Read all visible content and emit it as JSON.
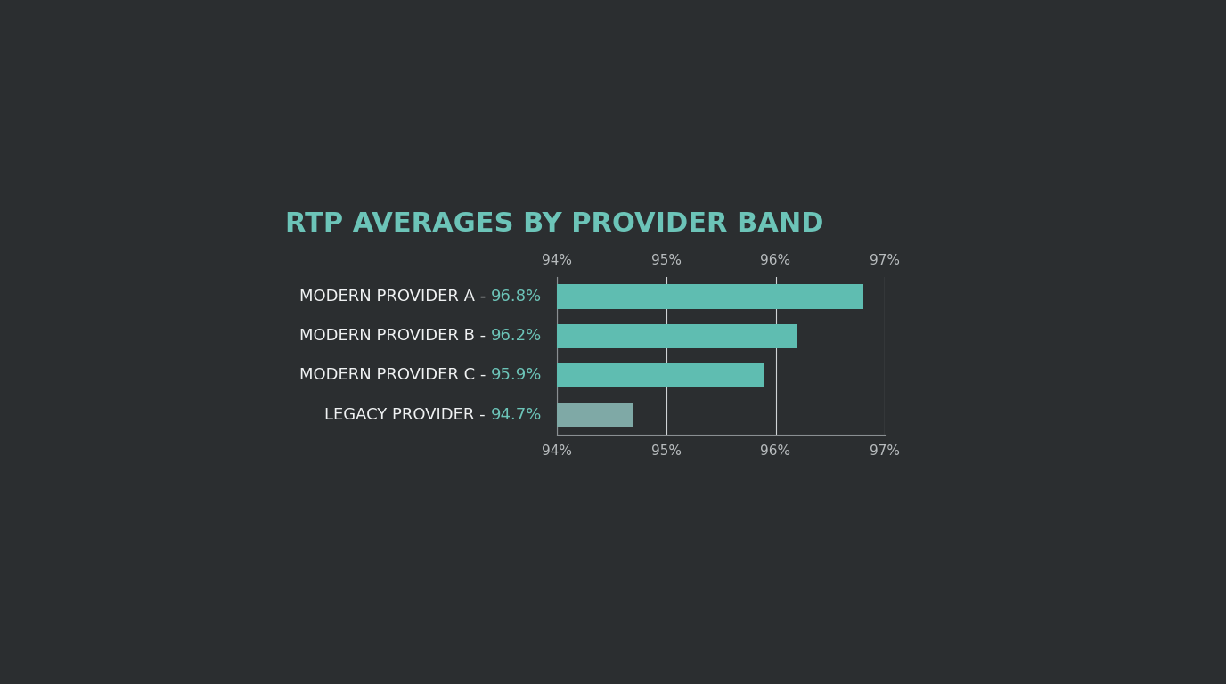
{
  "chart_data": {
    "type": "bar",
    "orientation": "horizontal",
    "title": "RTP AVERAGES BY PROVIDER BAND",
    "categories": [
      "MODERN PROVIDER A -",
      "MODERN PROVIDER B -",
      "MODERN PROVIDER C -",
      "LEGACY PROVIDER -"
    ],
    "values": [
      96.8,
      96.2,
      95.9,
      94.7
    ],
    "value_labels": [
      "96.8%",
      "96.2%",
      "95.9%",
      "94.7%"
    ],
    "data_labels": true,
    "colors": [
      "#5fbdb1",
      "#5fbdb1",
      "#5fbdb1",
      "#7fa9a6"
    ],
    "xlim": [
      94,
      97
    ],
    "xticks": [
      {
        "value": 94,
        "label": "94%"
      },
      {
        "value": 95,
        "label": "95%"
      },
      {
        "value": 96,
        "label": "96%"
      },
      {
        "value": 97,
        "label": "97%"
      }
    ],
    "grid": true
  }
}
